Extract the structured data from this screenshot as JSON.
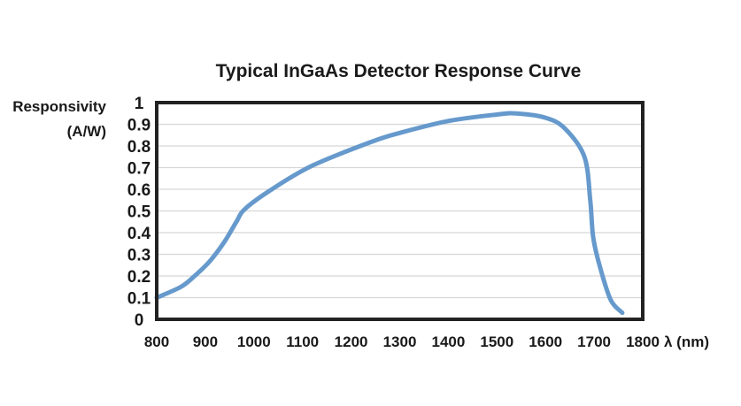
{
  "chart_data": {
    "type": "line",
    "title": "Typical InGaAs Detector Response Curve",
    "ylabel": [
      "Responsivity",
      "(A/W)"
    ],
    "xlabel": "λ (nm)",
    "xlim": [
      800,
      1800
    ],
    "ylim": [
      0,
      1
    ],
    "xticks": [
      "800",
      "900",
      "1000",
      "1100",
      "1200",
      "1300",
      "1400",
      "1500",
      "1600",
      "1700",
      "1800"
    ],
    "yticks": [
      "0",
      "0.1",
      "0.2",
      "0.3",
      "0.4",
      "0.5",
      "0.6",
      "0.7",
      "0.8",
      "0.9",
      "1"
    ],
    "grid": "horizontal",
    "line_color": "#6699cc",
    "series": [
      {
        "x": [
          800,
          850,
          878,
          910,
          940,
          964,
          982,
          1037,
          1121,
          1243,
          1300,
          1400,
          1500,
          1540,
          1600,
          1640,
          1680,
          1692,
          1698,
          1711,
          1734,
          1758
        ],
        "y": [
          0.1,
          0.15,
          0.2,
          0.27,
          0.36,
          0.45,
          0.51,
          0.6,
          0.71,
          0.82,
          0.86,
          0.915,
          0.945,
          0.95,
          0.93,
          0.88,
          0.75,
          0.55,
          0.38,
          0.25,
          0.09,
          0.03
        ]
      }
    ]
  }
}
